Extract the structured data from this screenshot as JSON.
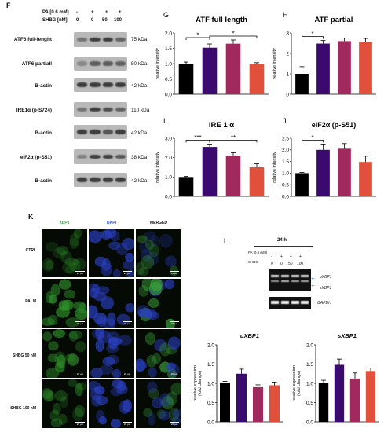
{
  "panel_F": {
    "letter": "F",
    "pa_label": "PA [0.6 mM]",
    "pa_values": [
      "-",
      "+",
      "+",
      "+"
    ],
    "shbg_label": "SHBG [nM]",
    "shbg_values": [
      "0",
      "0",
      "50",
      "100"
    ],
    "blots": [
      {
        "label": "ATF6  full-lenght",
        "kda": "75 kDa"
      },
      {
        "label": "ATF6 partiall",
        "kda": "50 kDa"
      },
      {
        "label": "B-actin",
        "kda": "42 kDa"
      },
      {
        "label": "IRE1α  (p-S724)",
        "kda": "110 kDa"
      },
      {
        "label": "B-actin",
        "kda": "42 kDa"
      },
      {
        "label": "eIF2α (p-S51)",
        "kda": "38 kDa"
      },
      {
        "label": "B-actin",
        "kda": "42 kDa"
      }
    ]
  },
  "colors": [
    "#000000",
    "#3b0a6e",
    "#a02a5e",
    "#e0503a"
  ],
  "chart_data": [
    {
      "panel": "G",
      "type": "bar",
      "title": "ATF full length",
      "ylabel": "relative intensity",
      "ylim": [
        0,
        2.0
      ],
      "yticks": [
        "0.0",
        "0.5",
        "1.0",
        "1.5",
        "2.0"
      ],
      "values": [
        1.0,
        1.52,
        1.65,
        0.98
      ],
      "errors": [
        0.05,
        0.12,
        0.12,
        0.05
      ],
      "sig": [
        {
          "from": 0,
          "to": 1,
          "label": "*"
        },
        {
          "from": 1,
          "to": 3,
          "label": "*"
        }
      ]
    },
    {
      "panel": "H",
      "type": "bar",
      "title": "ATF partial",
      "ylabel": "relative intensity",
      "ylim": [
        0,
        3
      ],
      "yticks": [
        "0",
        "1",
        "2",
        "3"
      ],
      "values": [
        1.0,
        2.48,
        2.6,
        2.55
      ],
      "errors": [
        0.35,
        0.15,
        0.15,
        0.18
      ],
      "sig": [
        {
          "from": 0,
          "to": 1,
          "label": "*"
        }
      ]
    },
    {
      "panel": "I",
      "type": "bar",
      "title": "IRE 1 α",
      "ylabel": "relative intensity",
      "ylim": [
        0,
        3.0
      ],
      "yticks": [
        "0.0",
        "1.0",
        "2.0",
        "3.0"
      ],
      "values": [
        1.0,
        2.55,
        2.1,
        1.5
      ],
      "errors": [
        0.03,
        0.15,
        0.15,
        0.18
      ],
      "sig": [
        {
          "from": 0,
          "to": 1,
          "label": "***"
        },
        {
          "from": 1,
          "to": 3,
          "label": "**"
        }
      ]
    },
    {
      "panel": "J",
      "type": "bar",
      "title": "eIF2α (p-S51)",
      "ylabel": "relative intensity",
      "ylim": [
        0,
        2.5
      ],
      "yticks": [
        "0.0",
        "0.5",
        "1.0",
        "1.5",
        "2.0",
        "2.5"
      ],
      "values": [
        1.0,
        2.0,
        2.05,
        1.48
      ],
      "errors": [
        0.03,
        0.25,
        0.22,
        0.25
      ],
      "sig": [
        {
          "from": 0,
          "to": 1,
          "label": "*"
        }
      ]
    },
    {
      "panel": "uXBP1",
      "type": "bar",
      "title": "uXBP1",
      "ylabel": "relative expression\n(fold change)",
      "ylim": [
        0,
        2.0
      ],
      "yticks": [
        "0.0",
        "0.5",
        "1.0",
        "1.5",
        "2.0"
      ],
      "values": [
        1.0,
        1.25,
        0.9,
        0.95
      ],
      "errors": [
        0.05,
        0.12,
        0.06,
        0.08
      ],
      "sig": []
    },
    {
      "panel": "sXBP1",
      "type": "bar",
      "title": "sXBP1",
      "ylabel": "relative expression\n(fold change)",
      "ylim": [
        0,
        2.0
      ],
      "yticks": [
        "0.0",
        "0.5",
        "1.0",
        "1.5",
        "2.0"
      ],
      "values": [
        1.0,
        1.48,
        1.12,
        1.32
      ],
      "errors": [
        0.08,
        0.15,
        0.15,
        0.08
      ],
      "sig": []
    }
  ],
  "panel_K": {
    "letter": "K",
    "columns": [
      "XBP1",
      "DAPI",
      "MERGED"
    ],
    "rows": [
      "CTRL",
      "PALM",
      "SHBG 50 nM",
      "SHBG 100 nM"
    ],
    "scale": "20 µm"
  },
  "panel_L": {
    "letter": "L",
    "time": "24 h",
    "pa_label": "PA [0.6 mM]",
    "pa_values": [
      "-",
      "+",
      "+",
      "+"
    ],
    "shbg_label": "SHBG",
    "shbg_values": [
      "0",
      "0",
      "50",
      "100"
    ],
    "uxbp1": "uXBP1",
    "sxbp1": "sXBP1",
    "gapdh": "GAPDH"
  }
}
